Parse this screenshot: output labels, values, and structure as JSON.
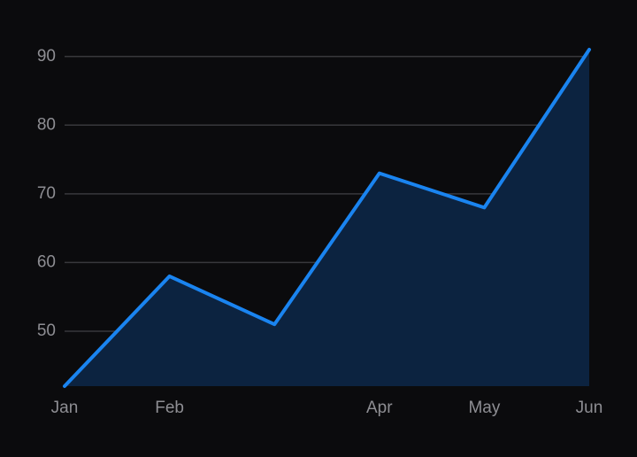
{
  "chart_data": {
    "type": "area",
    "categories": [
      "Jan",
      "Feb",
      null,
      "Apr",
      "May",
      "Jun"
    ],
    "series": [
      {
        "color": "#1a84f0",
        "fill": "#0c2340",
        "values": [
          42,
          58,
          51,
          73,
          68,
          91
        ]
      }
    ],
    "ylim": [
      42,
      91
    ],
    "yticks": [
      50,
      60,
      70,
      80,
      90
    ],
    "grid": true
  }
}
